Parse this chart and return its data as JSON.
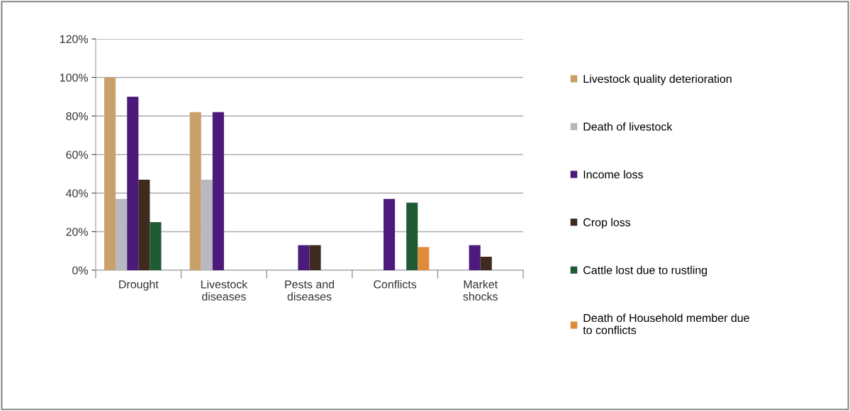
{
  "chart_data": {
    "type": "bar",
    "categories": [
      "Drought",
      "Livestock\ndiseases",
      "Pests and\ndiseases",
      "Conflicts",
      "Market\nshocks"
    ],
    "series": [
      {
        "name": "Livestock quality deterioration",
        "color": "#c9a06a",
        "values": [
          100,
          82,
          0,
          0,
          0
        ]
      },
      {
        "name": "Death of livestock",
        "color": "#b8b8c0",
        "values": [
          37,
          47,
          0,
          0,
          0
        ]
      },
      {
        "name": "Income loss",
        "color": "#4b1a7a",
        "values": [
          90,
          82,
          13,
          37,
          13
        ]
      },
      {
        "name": "Crop loss",
        "color": "#3e2a1e",
        "values": [
          47,
          0,
          13,
          0,
          7
        ]
      },
      {
        "name": "Cattle lost due to rustling",
        "color": "#1e5a32",
        "values": [
          25,
          0,
          0,
          35,
          0
        ]
      },
      {
        "name": "Death of Household member due\nto conflicts",
        "color": "#e08a3c",
        "values": [
          0,
          0,
          0,
          12,
          0
        ]
      }
    ],
    "ylim": [
      0,
      120
    ],
    "yticks": [
      {
        "value": 0,
        "label": "0%"
      },
      {
        "value": 20,
        "label": "20%"
      },
      {
        "value": 40,
        "label": "40%"
      },
      {
        "value": 60,
        "label": "60%"
      },
      {
        "value": 80,
        "label": "80%"
      },
      {
        "value": 100,
        "label": "100%"
      },
      {
        "value": 120,
        "label": "120%"
      }
    ],
    "grid": "y",
    "legend": "right"
  }
}
